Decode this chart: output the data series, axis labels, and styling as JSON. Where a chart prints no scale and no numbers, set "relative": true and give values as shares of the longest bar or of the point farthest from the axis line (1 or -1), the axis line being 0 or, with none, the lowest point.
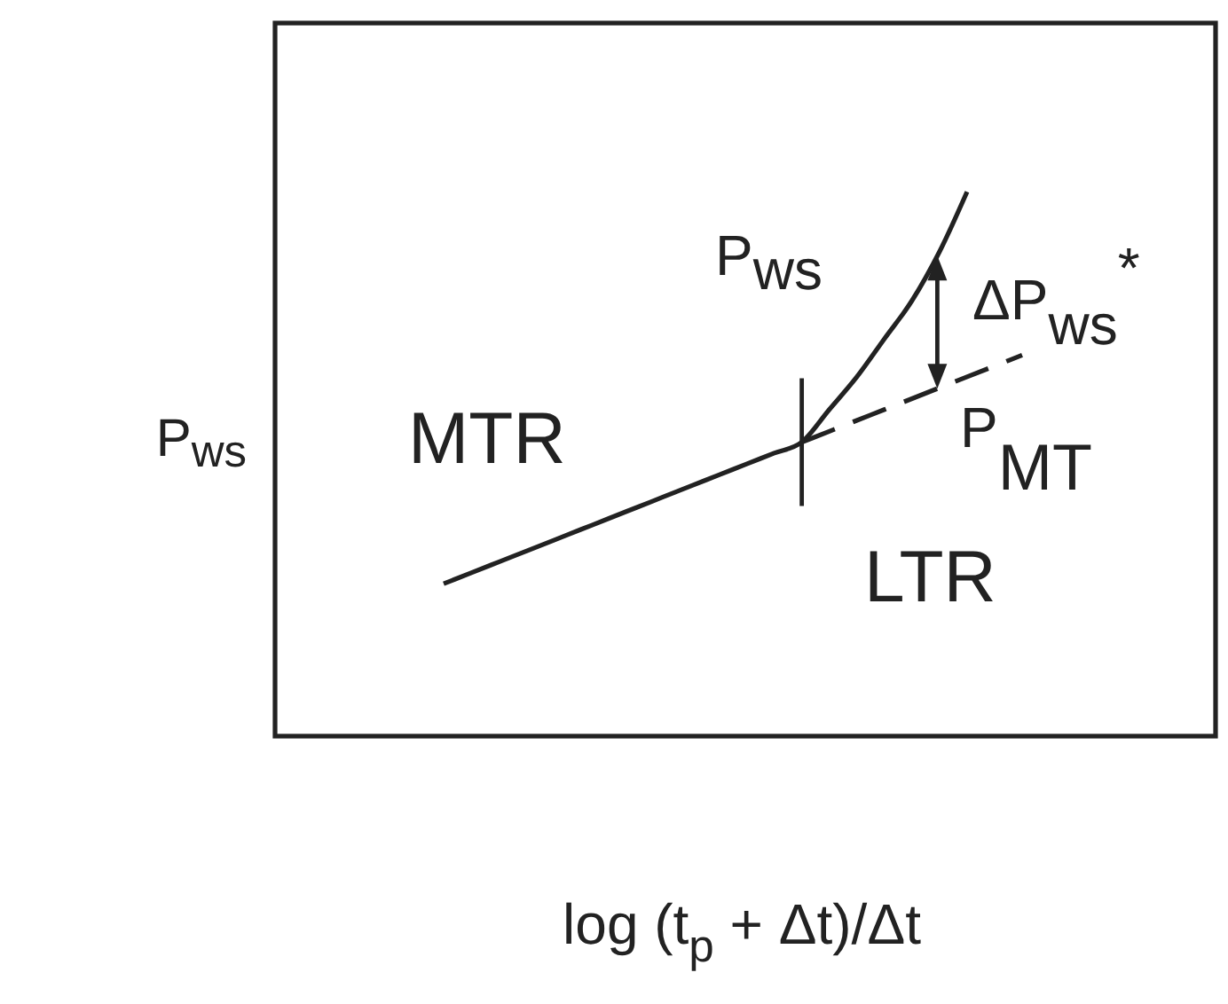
{
  "chart_data": {
    "type": "line",
    "relative": true,
    "line_style": "solid",
    "xlabel": "log (t$_{p}$ + Δt)/Δt",
    "ylabel": "P$_{ws}$",
    "categories": [
      null,
      null,
      null,
      null,
      null,
      null,
      null,
      null,
      null,
      null,
      null,
      null,
      null,
      null,
      null,
      null,
      null,
      null,
      null,
      null,
      null,
      null
    ],
    "series": [
      {
        "name": "P$_{ws}$",
        "color": "#222222",
        "values": [
          0.28,
          0.3,
          0.32,
          0.34,
          0.36,
          0.38,
          0.4,
          0.42,
          0.44,
          0.46,
          0.48,
          0.5,
          0.52,
          0.54,
          0.6,
          0.66,
          0.73,
          0.8,
          0.89,
          1.0,
          null,
          null
        ]
      },
      {
        "name": "P$_{MT}$",
        "color": "#222222",
        "line_style": "dashed",
        "values": [
          null,
          null,
          null,
          null,
          null,
          null,
          null,
          null,
          null,
          null,
          null,
          null,
          null,
          0.54,
          0.56,
          0.58,
          0.6,
          0.62,
          0.64,
          0.66,
          0.68,
          0.7
        ]
      }
    ],
    "annotations": [
      "MTR",
      "LTR",
      "ΔP$_{ws}$$^{*}$"
    ]
  }
}
